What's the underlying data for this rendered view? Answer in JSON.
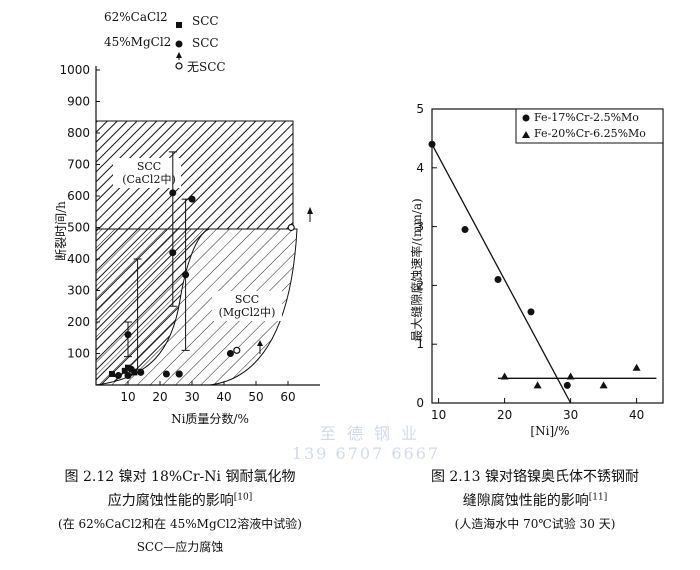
{
  "chart_data": [
    {
      "id": "fig-2-12",
      "type": "scatter",
      "ylabel": "断裂时间/h",
      "xlabel": "Ni质量分数/%",
      "xlim": [
        0,
        70
      ],
      "ylim": [
        0,
        1000
      ],
      "xticks": [
        "10",
        "20",
        "30",
        "40",
        "50",
        "60"
      ],
      "yticks": [
        "100",
        "200",
        "300",
        "400",
        "500",
        "600",
        "700",
        "800",
        "900",
        "1000"
      ],
      "legend": {
        "cacl2_label": "62%CaCl2",
        "mgcl2_label": "45%MgCl2",
        "scc": "SCC",
        "no_scc": "无SCC"
      },
      "region_labels": {
        "cacl2_l1": "SCC",
        "cacl2_l2": "(CaCl2中)",
        "mgcl2_l1": "SCC",
        "mgcl2_l2": "(MgCl2中)"
      },
      "series": [
        {
          "name": "62%CaCl2 SCC",
          "marker": "square",
          "x": [
            5,
            9,
            10,
            12
          ],
          "y": [
            35,
            45,
            55,
            40
          ]
        },
        {
          "name": "45%MgCl2 SCC",
          "marker": "circle",
          "x": [
            7,
            10,
            10,
            11,
            14,
            22,
            24,
            26,
            24,
            26,
            28,
            30,
            42
          ],
          "y": [
            30,
            30,
            160,
            50,
            40,
            35,
            610,
            35,
            420,
            35,
            350,
            590,
            100
          ]
        },
        {
          "name": "no SCC",
          "marker": "open-circle",
          "x": [
            44,
            61
          ],
          "y": [
            110,
            500
          ]
        }
      ],
      "error_bars": [
        {
          "x": 10,
          "ymin": 90,
          "ymax": 200
        },
        {
          "x": 13,
          "ymin": 50,
          "ymax": 400
        },
        {
          "x": 24,
          "ymin": 250,
          "ymax": 740
        },
        {
          "x": 28,
          "ymin": 110,
          "ymax": 590
        }
      ],
      "caption": {
        "line1": "图 2.12 镍对 18%Cr-Ni 钢耐氯化物",
        "line2": "应力腐蚀性能的影响",
        "ref": "[10]",
        "line3": "(在 62%CaCl2和在 45%MgCl2溶液中试验)",
        "line4": "SCC—应力腐蚀"
      }
    },
    {
      "id": "fig-2-13",
      "type": "scatter",
      "ylabel": "最大缝隙腐蚀速率/(mm/a)",
      "xlabel": "[Ni]/%",
      "xlim": [
        9,
        44
      ],
      "ylim": [
        0,
        5
      ],
      "xticks": [
        "10",
        "20",
        "30",
        "40"
      ],
      "yticks": [
        "0",
        "1",
        "2",
        "3",
        "4",
        "5"
      ],
      "series": [
        {
          "name": "Fe-17%Cr-2.5%Mo",
          "marker": "circle",
          "x": [
            9,
            14,
            19,
            24,
            29.5
          ],
          "y": [
            4.4,
            2.95,
            2.1,
            1.55,
            0.3
          ]
        },
        {
          "name": "Fe-20%Cr-6.25%Mo",
          "marker": "triangle",
          "x": [
            20,
            25,
            30,
            35,
            40
          ],
          "y": [
            0.45,
            0.3,
            0.45,
            0.3,
            0.6
          ]
        }
      ],
      "fit_lines": [
        {
          "x1": 9,
          "y1": 4.4,
          "x2": 30,
          "y2": 0
        },
        {
          "x1": 19,
          "y1": 0.42,
          "x2": 43,
          "y2": 0.42
        }
      ],
      "caption": {
        "line1": "图 2.13 镍对铬镍奥氏体不锈钢耐",
        "line2": "缝隙腐蚀性能的影响",
        "ref": "[11]",
        "line3": "(人造海水中 70℃试验 30 天)"
      }
    }
  ],
  "watermark": {
    "line1": "至 德 钢 业",
    "line2": "139 6707 6667"
  }
}
